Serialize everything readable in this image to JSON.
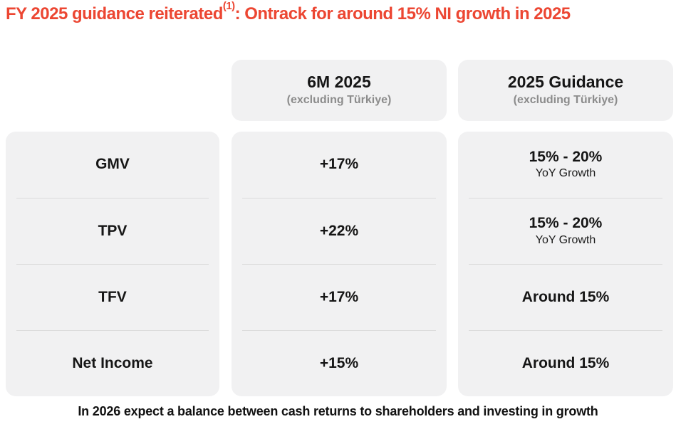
{
  "title": {
    "before_sup": "FY 2025 guidance reiterated",
    "superscript": "(1)",
    "after_sup": ": Ontrack for around 15% NI growth in 2025"
  },
  "table": {
    "columns": [
      {
        "title": "6M 2025",
        "subtitle": "(excluding Türkiye)"
      },
      {
        "title": "2025 Guidance",
        "subtitle": "(excluding Türkiye)"
      }
    ],
    "rows": [
      {
        "label": "GMV",
        "six_m": "+17%",
        "guidance": "15% - 20%",
        "guidance_sub": "YoY Growth"
      },
      {
        "label": "TPV",
        "six_m": "+22%",
        "guidance": "15% - 20%",
        "guidance_sub": "YoY Growth"
      },
      {
        "label": "TFV",
        "six_m": "+17%",
        "guidance": "Around 15%",
        "guidance_sub": ""
      },
      {
        "label": "Net Income",
        "six_m": "+15%",
        "guidance": "Around 15%",
        "guidance_sub": ""
      }
    ]
  },
  "footer": {
    "text": "In 2026 expect a balance between cash returns to shareholders and investing in growth"
  },
  "colors": {
    "accent_title": "#EC4632",
    "panel_background": "#F1F1F2",
    "subtitle_gray": "#8C8C8C",
    "divider": "#DBDBDB",
    "text": "#161616"
  }
}
